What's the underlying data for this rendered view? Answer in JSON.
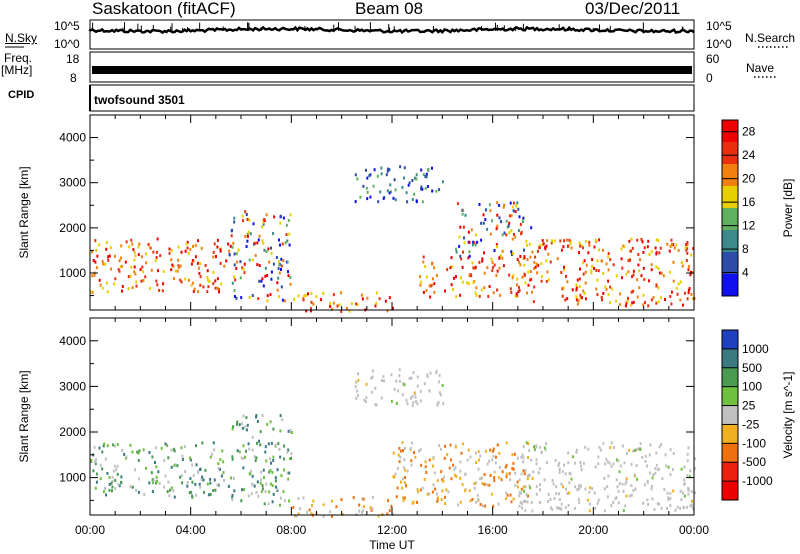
{
  "header": {
    "station": "Saskatoon (fitACF)",
    "beam": "Beam 08",
    "date": "03/Dec/2011"
  },
  "strips": {
    "nsky_label": "N.Sky",
    "nsky_ticks": [
      "10^5",
      "10^0"
    ],
    "nsearch_label": "N.Search",
    "nsearch_ticks": [
      "10^5",
      "10^0"
    ],
    "freq_label_1": "Freq.",
    "freq_label_2": "[MHz]",
    "freq_ticks": [
      "18",
      "8"
    ],
    "nave_label": "Nave",
    "nave_ticks": [
      "60",
      "0"
    ],
    "cpid_label": "CPID",
    "cpid_value": "twofsound 3501"
  },
  "chart_data": [
    {
      "type": "heatmap",
      "name": "power",
      "ylabel": "Slant Range [km]",
      "xlabel": "Time UT",
      "x_ticks": [
        "00:00",
        "04:00",
        "08:00",
        "12:00",
        "16:00",
        "20:00",
        "00:00"
      ],
      "y_ticks": [
        1000,
        2000,
        3000,
        4000
      ],
      "ylim": [
        180,
        4500
      ],
      "xlim_hours": [
        0,
        24
      ],
      "colorbar": {
        "label": "Power [dB]",
        "ticks": [
          4,
          8,
          12,
          16,
          20,
          24,
          28
        ],
        "range": [
          0,
          30
        ],
        "colors": [
          "#1010ee",
          "#2d4da8",
          "#3d8a8a",
          "#5fb060",
          "#e8d000",
          "#f08010",
          "#e83010",
          "#ee0000"
        ]
      },
      "scatter_regions": [
        {
          "t": [
            0.0,
            5.5
          ],
          "r": [
            600,
            1800
          ],
          "level": "high"
        },
        {
          "t": [
            5.5,
            8.0
          ],
          "r": [
            400,
            2400
          ],
          "level": "mixed"
        },
        {
          "t": [
            8.0,
            12.0
          ],
          "r": [
            180,
            600
          ],
          "level": "high"
        },
        {
          "t": [
            10.5,
            14.0
          ],
          "r": [
            2600,
            3400
          ],
          "level": "low"
        },
        {
          "t": [
            13.0,
            17.5
          ],
          "r": [
            500,
            1400
          ],
          "level": "high"
        },
        {
          "t": [
            14.5,
            17.5
          ],
          "r": [
            1400,
            2600
          ],
          "level": "mixed"
        },
        {
          "t": [
            17.0,
            24.0
          ],
          "r": [
            300,
            1800
          ],
          "level": "high"
        }
      ]
    },
    {
      "type": "heatmap",
      "name": "velocity",
      "ylabel": "Slant Range [km]",
      "xlabel": "Time UT",
      "x_ticks": [
        "00:00",
        "04:00",
        "08:00",
        "12:00",
        "16:00",
        "20:00",
        "00:00"
      ],
      "y_ticks": [
        1000,
        2000,
        3000,
        4000
      ],
      "ylim": [
        180,
        4500
      ],
      "xlim_hours": [
        0,
        24
      ],
      "colorbar": {
        "label": "Velocity [m s^-1]",
        "ticks": [
          1000,
          500,
          100,
          25,
          -25,
          -100,
          -500,
          -1000
        ],
        "colors": [
          "#2040c0",
          "#3a7a80",
          "#4a9a50",
          "#70c040",
          "#c0c0c0",
          "#f0b020",
          "#f07010",
          "#ee2010",
          "#ee0000"
        ]
      },
      "scatter_regions": [
        {
          "t": [
            0.0,
            5.5
          ],
          "r": [
            600,
            1800
          ],
          "level": "positive"
        },
        {
          "t": [
            5.5,
            8.0
          ],
          "r": [
            400,
            2400
          ],
          "level": "positive"
        },
        {
          "t": [
            8.0,
            12.0
          ],
          "r": [
            180,
            600
          ],
          "level": "negative"
        },
        {
          "t": [
            10.5,
            14.0
          ],
          "r": [
            2600,
            3400
          ],
          "level": "zero"
        },
        {
          "t": [
            12.0,
            17.5
          ],
          "r": [
            400,
            1800
          ],
          "level": "negative"
        },
        {
          "t": [
            17.0,
            24.0
          ],
          "r": [
            300,
            1800
          ],
          "level": "zero"
        }
      ]
    }
  ]
}
